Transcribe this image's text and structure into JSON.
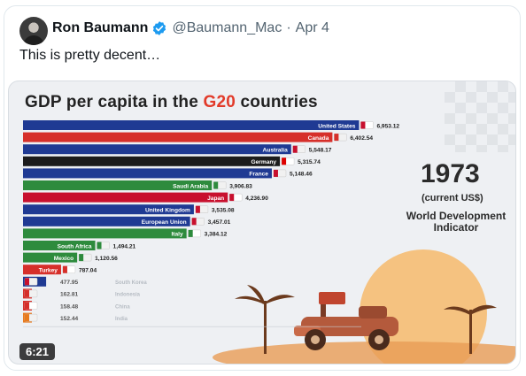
{
  "tweet": {
    "author_name": "Ron Baumann",
    "handle": "@Baumann_Mac",
    "separator": "·",
    "date": "Apr 4",
    "text": "This is pretty decent…"
  },
  "media": {
    "title_prefix": "GDP per capita in the ",
    "title_highlight": "G20",
    "title_suffix": " countries",
    "year": "1973",
    "currency": "(current US$)",
    "source_line1": "World Development",
    "source_line2": "Indicator",
    "duration": "6:21",
    "colors": {
      "accent": "#e23b2a"
    }
  },
  "chart_data": {
    "type": "bar",
    "orientation": "horizontal",
    "categories": [
      "United States",
      "Canada",
      "Australia",
      "Germany",
      "France",
      "Saudi Arabia",
      "Japan",
      "United Kingdom",
      "European Union",
      "Italy",
      "South Africa",
      "Mexico",
      "Turkey",
      "South Korea",
      "Indonesia",
      "China",
      "India"
    ],
    "values": [
      6953.12,
      6402.54,
      5548.17,
      5315.74,
      5148.46,
      3906.83,
      4236.9,
      3535.08,
      3457.01,
      3384.12,
      1494.21,
      1120.56,
      787.04,
      477.95,
      162.81,
      158.48,
      152.44
    ],
    "value_labels": [
      "6,953.12",
      "6,402.54",
      "5,548.17",
      "5,315.74",
      "5,148.46",
      "3,906.83",
      "4,236.90",
      "3,535.08",
      "3,457.01",
      "3,384.12",
      "1,494.21",
      "1,120.56",
      "787.04",
      "477.95",
      "162.81",
      "158.48",
      "152.44"
    ],
    "colors": [
      "#1f3a93",
      "#d62f2a",
      "#1f3a93",
      "#1c1c1c",
      "#1f3a93",
      "#2e8b3d",
      "#c8102e",
      "#1f3a93",
      "#1f3a93",
      "#2e8b3d",
      "#2e8b3d",
      "#2e8b3d",
      "#d62f2a",
      "#1f3a93",
      "#d62f2a",
      "#d62f2a",
      "#e87a1d"
    ],
    "flag_icons": [
      "us-flag-icon",
      "canada-flag-icon",
      "australia-flag-icon",
      "germany-flag-icon",
      "france-flag-icon",
      "saudi-arabia-flag-icon",
      "japan-flag-icon",
      "uk-flag-icon",
      "eu-flag-icon",
      "italy-flag-icon",
      "south-africa-flag-icon",
      "mexico-flag-icon",
      "turkey-flag-icon",
      "south-korea-flag-icon",
      "indonesia-flag-icon",
      "china-flag-icon",
      "india-flag-icon"
    ],
    "xlim": [
      0,
      7000
    ],
    "title": "GDP per capita in the G20 countries"
  }
}
